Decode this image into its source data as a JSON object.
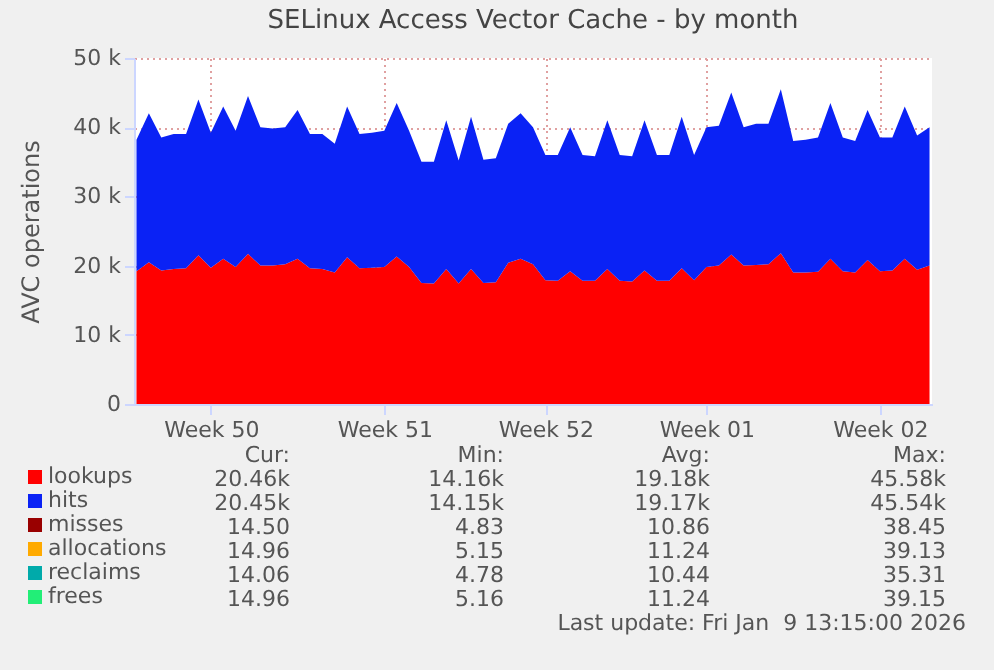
{
  "chart_data": {
    "type": "area",
    "title": "SELinux Access Vector Cache - by month",
    "ylabel": "AVC operations",
    "stacked": true,
    "grid": true,
    "legend": "bottom left",
    "categories": [
      null,
      null,
      null,
      null,
      null,
      null,
      "Week 50",
      null,
      null,
      null,
      null,
      null,
      null,
      null,
      null,
      null,
      null,
      null,
      null,
      null,
      "Week 51",
      null,
      null,
      null,
      null,
      null,
      null,
      null,
      null,
      null,
      null,
      null,
      null,
      "Week 52",
      null,
      null,
      null,
      null,
      null,
      null,
      null,
      null,
      null,
      null,
      null,
      null,
      "Week 01",
      null,
      null,
      null,
      null,
      null,
      null,
      null,
      null,
      null,
      null,
      null,
      null,
      null,
      "Week 02",
      null,
      null,
      null,
      null
    ],
    "ylim": [
      0,
      50000
    ],
    "yticks": [
      0,
      {
        "value": 10000,
        "label": "10 k"
      },
      {
        "value": 20000,
        "label": "20 k"
      },
      {
        "value": 30000,
        "label": "30 k"
      },
      {
        "value": 40000,
        "label": "40 k"
      },
      {
        "value": 50000,
        "label": "50 k"
      }
    ],
    "series": [
      {
        "name": "lookups",
        "color": "#ff0000",
        "values": [
          19200,
          20500,
          19300,
          19500,
          19600,
          21500,
          19700,
          21000,
          19800,
          21700,
          20000,
          20000,
          20200,
          21000,
          19600,
          19500,
          19000,
          21200,
          19600,
          19700,
          19800,
          21300,
          19800,
          17500,
          17400,
          19500,
          17400,
          19500,
          17500,
          17600,
          20400,
          21000,
          20200,
          17900,
          17800,
          19200,
          17800,
          17800,
          19500,
          17800,
          17700,
          19300,
          17800,
          17800,
          19600,
          17900,
          19800,
          20000,
          21600,
          20000,
          20100,
          20200,
          21800,
          19000,
          19000,
          19100,
          21000,
          19200,
          19000,
          20800,
          19200,
          19300,
          21000,
          19400,
          20000
        ]
      },
      {
        "name": "hits",
        "color": "#0a22f5",
        "values": [
          19000,
          21500,
          19200,
          19500,
          19400,
          22500,
          19500,
          22000,
          19700,
          22800,
          20000,
          19800,
          19800,
          21500,
          19400,
          19500,
          18600,
          21800,
          19400,
          19500,
          19700,
          22200,
          19700,
          17500,
          17600,
          21500,
          17800,
          22000,
          17800,
          17900,
          20100,
          21000,
          19800,
          18100,
          18200,
          20800,
          18200,
          18000,
          21500,
          18200,
          18100,
          21700,
          18200,
          18200,
          21900,
          18100,
          20200,
          20200,
          23400,
          20000,
          20400,
          20300,
          23700,
          19000,
          19200,
          19400,
          22500,
          19300,
          19000,
          21700,
          19300,
          19200,
          22000,
          19400,
          20000
        ]
      },
      {
        "name": "misses",
        "color": "#990000",
        "values": [
          null,
          null,
          null,
          null,
          null,
          null,
          null,
          null,
          null,
          null,
          null,
          null,
          null,
          null,
          null,
          null,
          null,
          null,
          null,
          null,
          null,
          null,
          null,
          null,
          null,
          null,
          null,
          null,
          null,
          null,
          null,
          null,
          null,
          null,
          null,
          null,
          null,
          null,
          null,
          null,
          null,
          null,
          null,
          null,
          null,
          null,
          null,
          null,
          null,
          null,
          null,
          null,
          null,
          null,
          null,
          null,
          null,
          null,
          null,
          null,
          null,
          null,
          null,
          null,
          null
        ]
      },
      {
        "name": "allocations",
        "color": "#ffaa00",
        "values": [
          null,
          null,
          null,
          null,
          null,
          null,
          null,
          null,
          null,
          null,
          null,
          null,
          null,
          null,
          null,
          null,
          null,
          null,
          null,
          null,
          null,
          null,
          null,
          null,
          null,
          null,
          null,
          null,
          null,
          null,
          null,
          null,
          null,
          null,
          null,
          null,
          null,
          null,
          null,
          null,
          null,
          null,
          null,
          null,
          null,
          null,
          null,
          null,
          null,
          null,
          null,
          null,
          null,
          null,
          null,
          null,
          null,
          null,
          null,
          null,
          null,
          null,
          null,
          null,
          null
        ]
      },
      {
        "name": "reclaims",
        "color": "#00aaaa",
        "values": [
          null,
          null,
          null,
          null,
          null,
          null,
          null,
          null,
          null,
          null,
          null,
          null,
          null,
          null,
          null,
          null,
          null,
          null,
          null,
          null,
          null,
          null,
          null,
          null,
          null,
          null,
          null,
          null,
          null,
          null,
          null,
          null,
          null,
          null,
          null,
          null,
          null,
          null,
          null,
          null,
          null,
          null,
          null,
          null,
          null,
          null,
          null,
          null,
          null,
          null,
          null,
          null,
          null,
          null,
          null,
          null,
          null,
          null,
          null,
          null,
          null,
          null,
          null,
          null,
          null
        ]
      },
      {
        "name": "frees",
        "color": "#22ee77",
        "values": [
          null,
          null,
          null,
          null,
          null,
          null,
          null,
          null,
          null,
          null,
          null,
          null,
          null,
          null,
          null,
          null,
          null,
          null,
          null,
          null,
          null,
          null,
          null,
          null,
          null,
          null,
          null,
          null,
          null,
          null,
          null,
          null,
          null,
          null,
          null,
          null,
          null,
          null,
          null,
          null,
          null,
          null,
          null,
          null,
          null,
          null,
          null,
          null,
          null,
          null,
          null,
          null,
          null,
          null,
          null,
          null,
          null,
          null,
          null,
          null,
          null,
          null,
          null,
          null,
          null
        ]
      }
    ],
    "annotations": [
      "Cur:",
      "Min:",
      "Avg:",
      "Max:",
      "20.46k",
      "14.16k",
      "19.18k",
      "45.58k",
      "20.45k",
      "14.15k",
      "19.17k",
      "45.54k",
      "14.50",
      "4.83",
      "10.86",
      "38.45",
      "14.96",
      "5.15",
      "11.24",
      "39.13",
      "14.06",
      "4.78",
      "10.44",
      "35.31",
      "14.96",
      "5.16",
      "11.24",
      "39.15",
      "Last update: Fri Jan  9 13:15:00 2026"
    ]
  }
}
